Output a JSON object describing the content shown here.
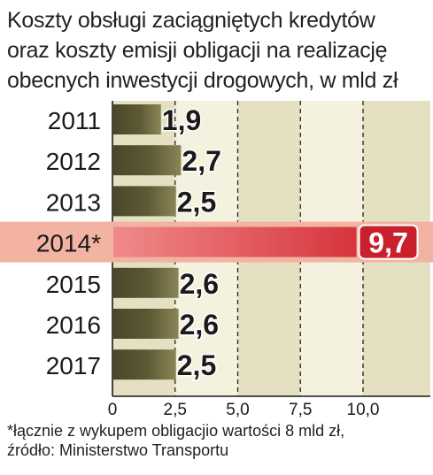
{
  "chart_data": {
    "type": "bar",
    "orientation": "horizontal",
    "title_lines": [
      "Koszty obsługi zaciągniętych kredytów",
      "oraz koszty emisji obligacji na realizację",
      "obecnych inwestycji drogowych, w mld zł"
    ],
    "categories": [
      "2011",
      "2012",
      "2013",
      "2014*",
      "2015",
      "2016",
      "2017"
    ],
    "values": [
      1.9,
      2.7,
      2.5,
      9.7,
      2.6,
      2.6,
      2.5
    ],
    "value_labels": [
      "1,9",
      "2,7",
      "2,5",
      "9,7",
      "2,6",
      "2,6",
      "2,5"
    ],
    "highlight_index": 3,
    "xlim": [
      0,
      11
    ],
    "ticks": [
      0,
      2.5,
      5.0,
      7.5,
      10.0
    ],
    "tick_labels": [
      "0",
      "2,5",
      "5,0",
      "7,5",
      "10,0"
    ],
    "grid": "dashed vertical",
    "colors": {
      "bar": "#5e5a36",
      "bar_highlight": "#d6353c",
      "highlight_band": "#f2b3a3",
      "label_highlight_bg": "#c8202c",
      "bg_light": "#f4f1df",
      "bg_dark": "#e5e0c2"
    }
  },
  "footnote": [
    "*łącznie z wykupem obligacjio wartości 8 mld zł,",
    "źródło: Ministerstwo Transportu"
  ]
}
